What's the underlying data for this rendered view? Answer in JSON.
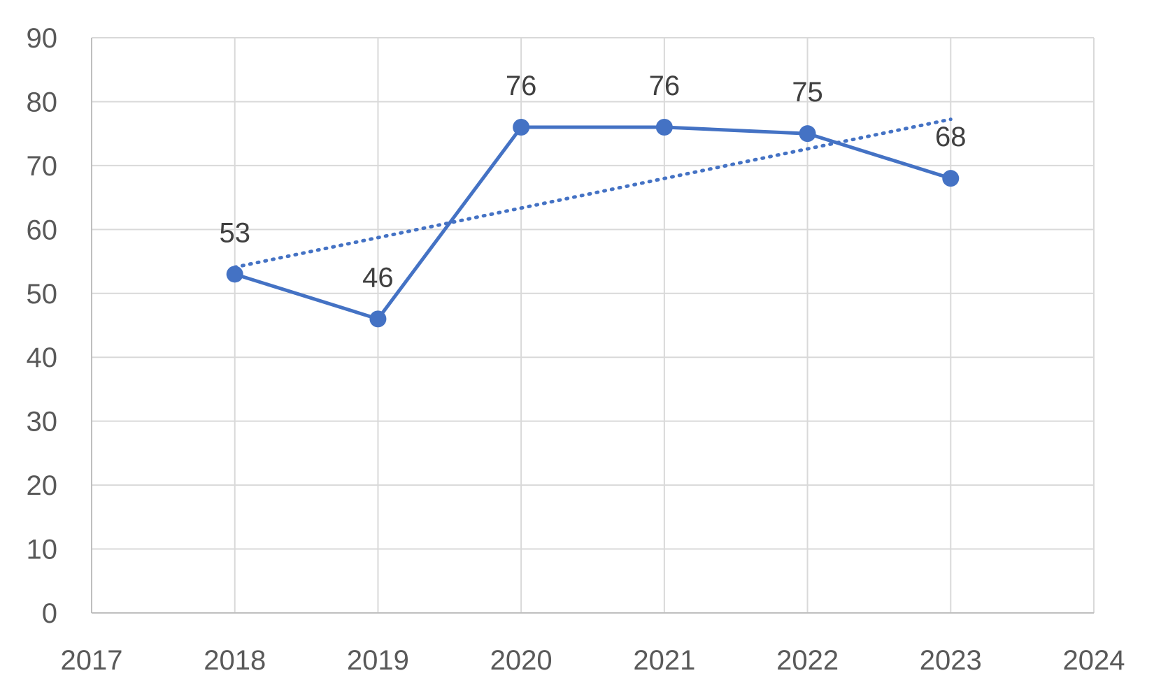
{
  "chart_data": {
    "type": "scatter",
    "title": "",
    "xlabel": "",
    "ylabel": "",
    "xlim": [
      2017,
      2024
    ],
    "ylim": [
      0,
      90
    ],
    "x_ticks": [
      "2017",
      "2018",
      "2019",
      "2020",
      "2021",
      "2022",
      "2023",
      "2024"
    ],
    "y_ticks": [
      "0",
      "10",
      "20",
      "30",
      "40",
      "50",
      "60",
      "70",
      "80",
      "90"
    ],
    "grid": true,
    "legend": "none",
    "series": [
      {
        "x": [
          2018,
          2019,
          2020,
          2021,
          2022,
          2023
        ],
        "y": [
          53,
          46,
          76,
          76,
          75,
          68
        ],
        "data_labels": [
          "53",
          "46",
          "76",
          "76",
          "75",
          "68"
        ],
        "style": "solid line with markers",
        "color": "#4472C4"
      }
    ],
    "trendline": {
      "type": "linear",
      "style": "dotted",
      "color": "#4472C4"
    }
  }
}
